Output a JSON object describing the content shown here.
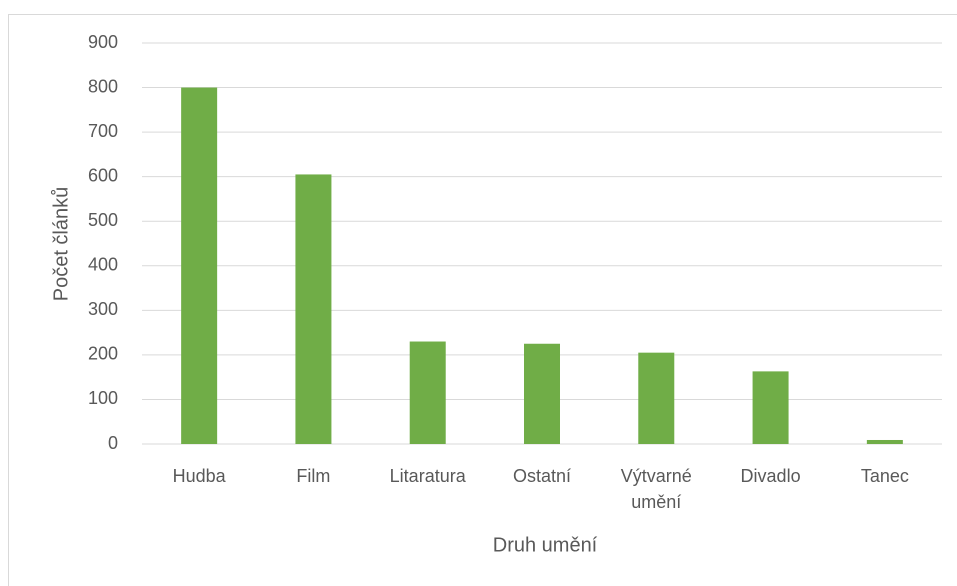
{
  "chart_data": {
    "type": "bar",
    "x_label": "Druh umění",
    "y_label": "Počet článků",
    "categories": [
      "Hudba",
      "Film",
      "Litaratura",
      "Ostatní",
      "Výtvarné umění",
      "Divadlo",
      "Tanec"
    ],
    "values": [
      800,
      605,
      230,
      225,
      205,
      163,
      9
    ],
    "color": "#70ad47",
    "ylim": [
      0,
      900
    ],
    "yticks": [
      0,
      100,
      200,
      300,
      400,
      500,
      600,
      700,
      800,
      900
    ],
    "grid": true
  }
}
